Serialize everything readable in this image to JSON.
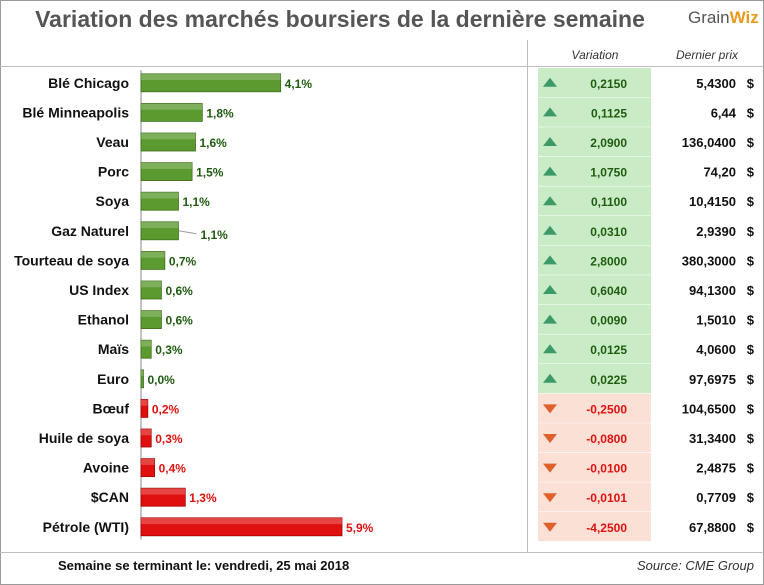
{
  "title": "Variation des marchés boursiers de la dernière semaine",
  "logo": {
    "part1": "Grain",
    "part2": "Wiz"
  },
  "headers": {
    "variation": "Variation",
    "dernier_prix": "Dernier prix"
  },
  "footer": {
    "week_label": "Semaine se terminant le:  vendredi, 25 mai 2018",
    "source": "Source: CME Group"
  },
  "colors": {
    "positive_bar": "#5a9a2e",
    "negative_bar": "#e01010",
    "positive_cell": "#c9ecc6",
    "negative_cell": "#fbe0d6",
    "positive_text": "#1f5c10",
    "negative_text": "#e01010",
    "up_arrow": "#3d9a68",
    "down_arrow": "#e0602c"
  },
  "currency_symbol": "$",
  "chart_data": {
    "type": "bar",
    "orientation": "horizontal",
    "categories": [
      "Blé Chicago",
      "Blé Minneapolis",
      "Veau",
      "Porc",
      "Soya",
      "Gaz Naturel",
      "Tourteau de soya",
      "US Index",
      "Ethanol",
      "Maïs",
      "Euro",
      "Bœuf",
      "Huile de soya",
      "Avoine",
      "$CAN",
      "Pétrole (WTI)"
    ],
    "values": [
      4.1,
      1.8,
      1.6,
      1.5,
      1.1,
      1.1,
      0.7,
      0.6,
      0.6,
      0.3,
      0.0,
      0.2,
      0.3,
      0.4,
      1.3,
      5.9
    ],
    "labels": [
      "4,1%",
      "1,8%",
      "1,6%",
      "1,5%",
      "1,1%",
      "1,1%",
      "0,7%",
      "0,6%",
      "0,6%",
      "0,3%",
      "0,0%",
      "0,2%",
      "0,3%",
      "0,4%",
      "1,3%",
      "5,9%"
    ],
    "direction": [
      "up",
      "up",
      "up",
      "up",
      "up",
      "up",
      "up",
      "up",
      "up",
      "up",
      "up",
      "down",
      "down",
      "down",
      "down",
      "down"
    ],
    "variation": [
      "0,2150",
      "0,1125",
      "2,0900",
      "1,0750",
      "0,1100",
      "0,0310",
      "2,8000",
      "0,6040",
      "0,0090",
      "0,0125",
      "0,0225",
      "-0,2500",
      "-0,0800",
      "-0,0100",
      "-0,0101",
      "-4,2500"
    ],
    "dernier_prix": [
      "5,4300",
      "6,44",
      "136,0400",
      "74,20",
      "10,4150",
      "2,9390",
      "380,3000",
      "94,1300",
      "1,5010",
      "4,0600",
      "97,6975",
      "104,6500",
      "31,3400",
      "2,4875",
      "0,7709",
      "67,8800"
    ],
    "xlim": [
      0,
      5.9
    ],
    "title": "Variation des marchés boursiers de la dernière semaine",
    "xlabel": "",
    "ylabel": ""
  }
}
